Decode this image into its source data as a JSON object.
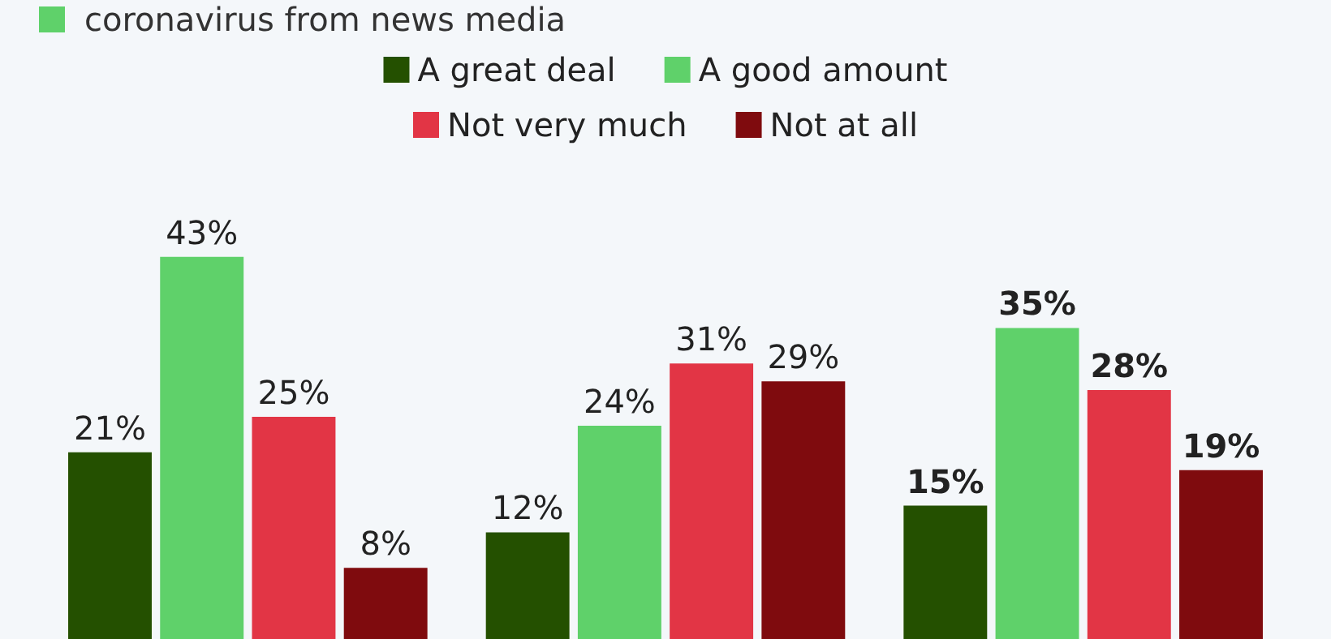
{
  "chart_data": {
    "type": "bar",
    "subtitle": "coronavirus from news media",
    "categories": [
      null,
      null,
      null
    ],
    "series": [
      {
        "name": "A great deal",
        "color": "#245000",
        "values": [
          21,
          12,
          15
        ],
        "value_labels": [
          "21%",
          "12%",
          "15%"
        ]
      },
      {
        "name": "A good amount",
        "color": "#5fd16a",
        "values": [
          43,
          24,
          35
        ],
        "value_labels": [
          "43%",
          "24%",
          "35%"
        ]
      },
      {
        "name": "Not very much",
        "color": "#e23545",
        "values": [
          25,
          31,
          28
        ],
        "value_labels": [
          "25%",
          "31%",
          "28%"
        ]
      },
      {
        "name": "Not at all",
        "color": "#7f0b0e",
        "values": [
          8,
          29,
          19
        ],
        "value_labels": [
          "8%",
          "29%",
          "19%"
        ]
      }
    ],
    "tick_labels": false,
    "legend": "top"
  }
}
